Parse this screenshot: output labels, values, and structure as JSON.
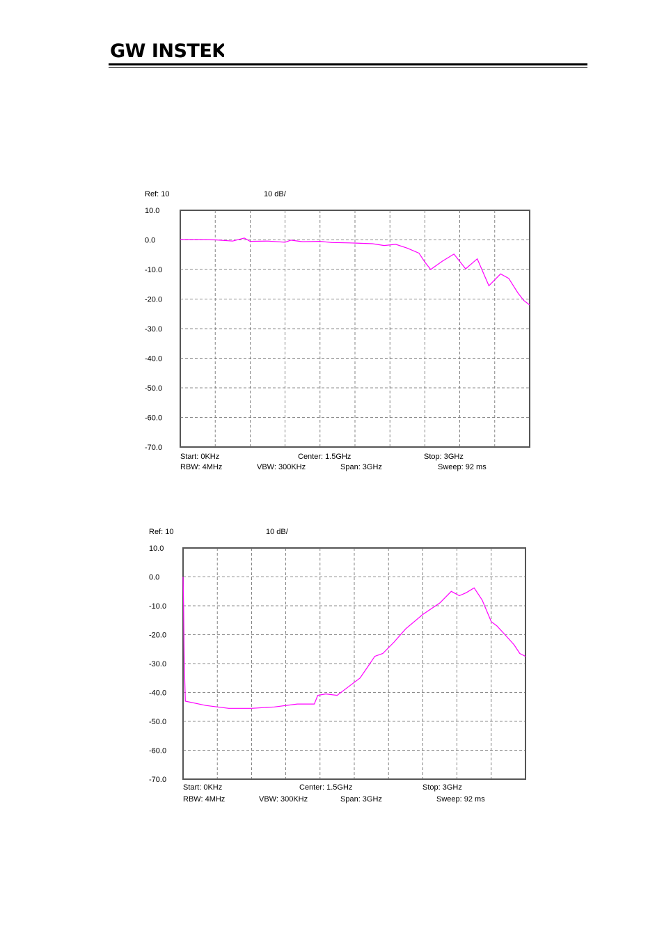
{
  "header": {
    "brand": "GW INSTEK"
  },
  "trace_color": "#ff00ff",
  "chart_data": [
    {
      "type": "line",
      "ref_label": "Ref: 10",
      "scale_label": "10 dB/",
      "y_ticks": [
        "10.0",
        "0.0",
        "-10.0",
        "-20.0",
        "-30.0",
        "-40.0",
        "-50.0",
        "-60.0",
        "-70.0"
      ],
      "ylim": [
        -70,
        10
      ],
      "xlim": [
        0,
        3
      ],
      "x_unit": "GHz",
      "y_unit": "dB",
      "grid": true,
      "footer": {
        "start": "Start: 0KHz",
        "center": "Center: 1.5GHz",
        "stop": "Stop: 3GHz",
        "rbw": "RBW: 4MHz",
        "vbw": "VBW: 300KHz",
        "span": "Span: 3GHz",
        "sweep": "Sweep: 92  ms"
      },
      "series": [
        {
          "x": [
            0,
            0.15,
            0.3,
            0.45,
            0.55,
            0.6,
            0.75,
            0.9,
            0.95,
            1.05,
            1.2,
            1.3,
            1.45,
            1.65,
            1.75,
            1.85,
            1.95,
            2.05,
            2.1,
            2.15,
            2.25,
            2.35,
            2.45,
            2.55,
            2.65,
            2.75,
            2.82,
            2.9,
            2.95,
            3.0
          ],
          "y": [
            0.1,
            0.1,
            0,
            -0.4,
            0.6,
            -0.5,
            -0.4,
            -0.8,
            -0.1,
            -0.6,
            -0.5,
            -0.9,
            -1.0,
            -1.3,
            -1.9,
            -1.5,
            -2.8,
            -4.5,
            -7.5,
            -10.0,
            -7.2,
            -4.8,
            -9.8,
            -6.4,
            -15.5,
            -11.5,
            -13.0,
            -18.0,
            -20.5,
            -22.0
          ]
        }
      ]
    },
    {
      "type": "line",
      "ref_label": "Ref: 10",
      "scale_label": "10 dB/",
      "y_ticks": [
        "10.0",
        "0.0",
        "-10.0",
        "-20.0",
        "-30.0",
        "-40.0",
        "-50.0",
        "-60.0",
        "-70.0"
      ],
      "ylim": [
        -70,
        10
      ],
      "xlim": [
        0,
        3
      ],
      "x_unit": "GHz",
      "y_unit": "dB",
      "grid": true,
      "footer": {
        "start": "Start: 0KHz",
        "center": "Center: 1.5GHz",
        "stop": "Stop: 3GHz",
        "rbw": "RBW: 4MHz",
        "vbw": "VBW: 300KHz",
        "span": "Span: 3GHz",
        "sweep": "Sweep: 92  ms"
      },
      "series": [
        {
          "x": [
            0,
            0.005,
            0.01,
            0.02,
            0.2,
            0.4,
            0.6,
            0.8,
            1.0,
            1.15,
            1.18,
            1.25,
            1.35,
            1.45,
            1.55,
            1.62,
            1.68,
            1.75,
            1.85,
            1.95,
            2.1,
            2.25,
            2.35,
            2.42,
            2.48,
            2.55,
            2.62,
            2.7,
            2.75,
            2.82,
            2.9,
            2.95,
            3.0
          ],
          "y": [
            0,
            -10,
            -28,
            -43,
            -44.5,
            -45.5,
            -45.5,
            -45,
            -44,
            -44,
            -41,
            -40.5,
            -41,
            -38,
            -35,
            -31,
            -27.5,
            -26.5,
            -22.5,
            -18,
            -13,
            -9,
            -5,
            -6.5,
            -5.5,
            -3.8,
            -8,
            -15.5,
            -17,
            -20,
            -23.5,
            -26.5,
            -27.5
          ]
        }
      ]
    }
  ]
}
